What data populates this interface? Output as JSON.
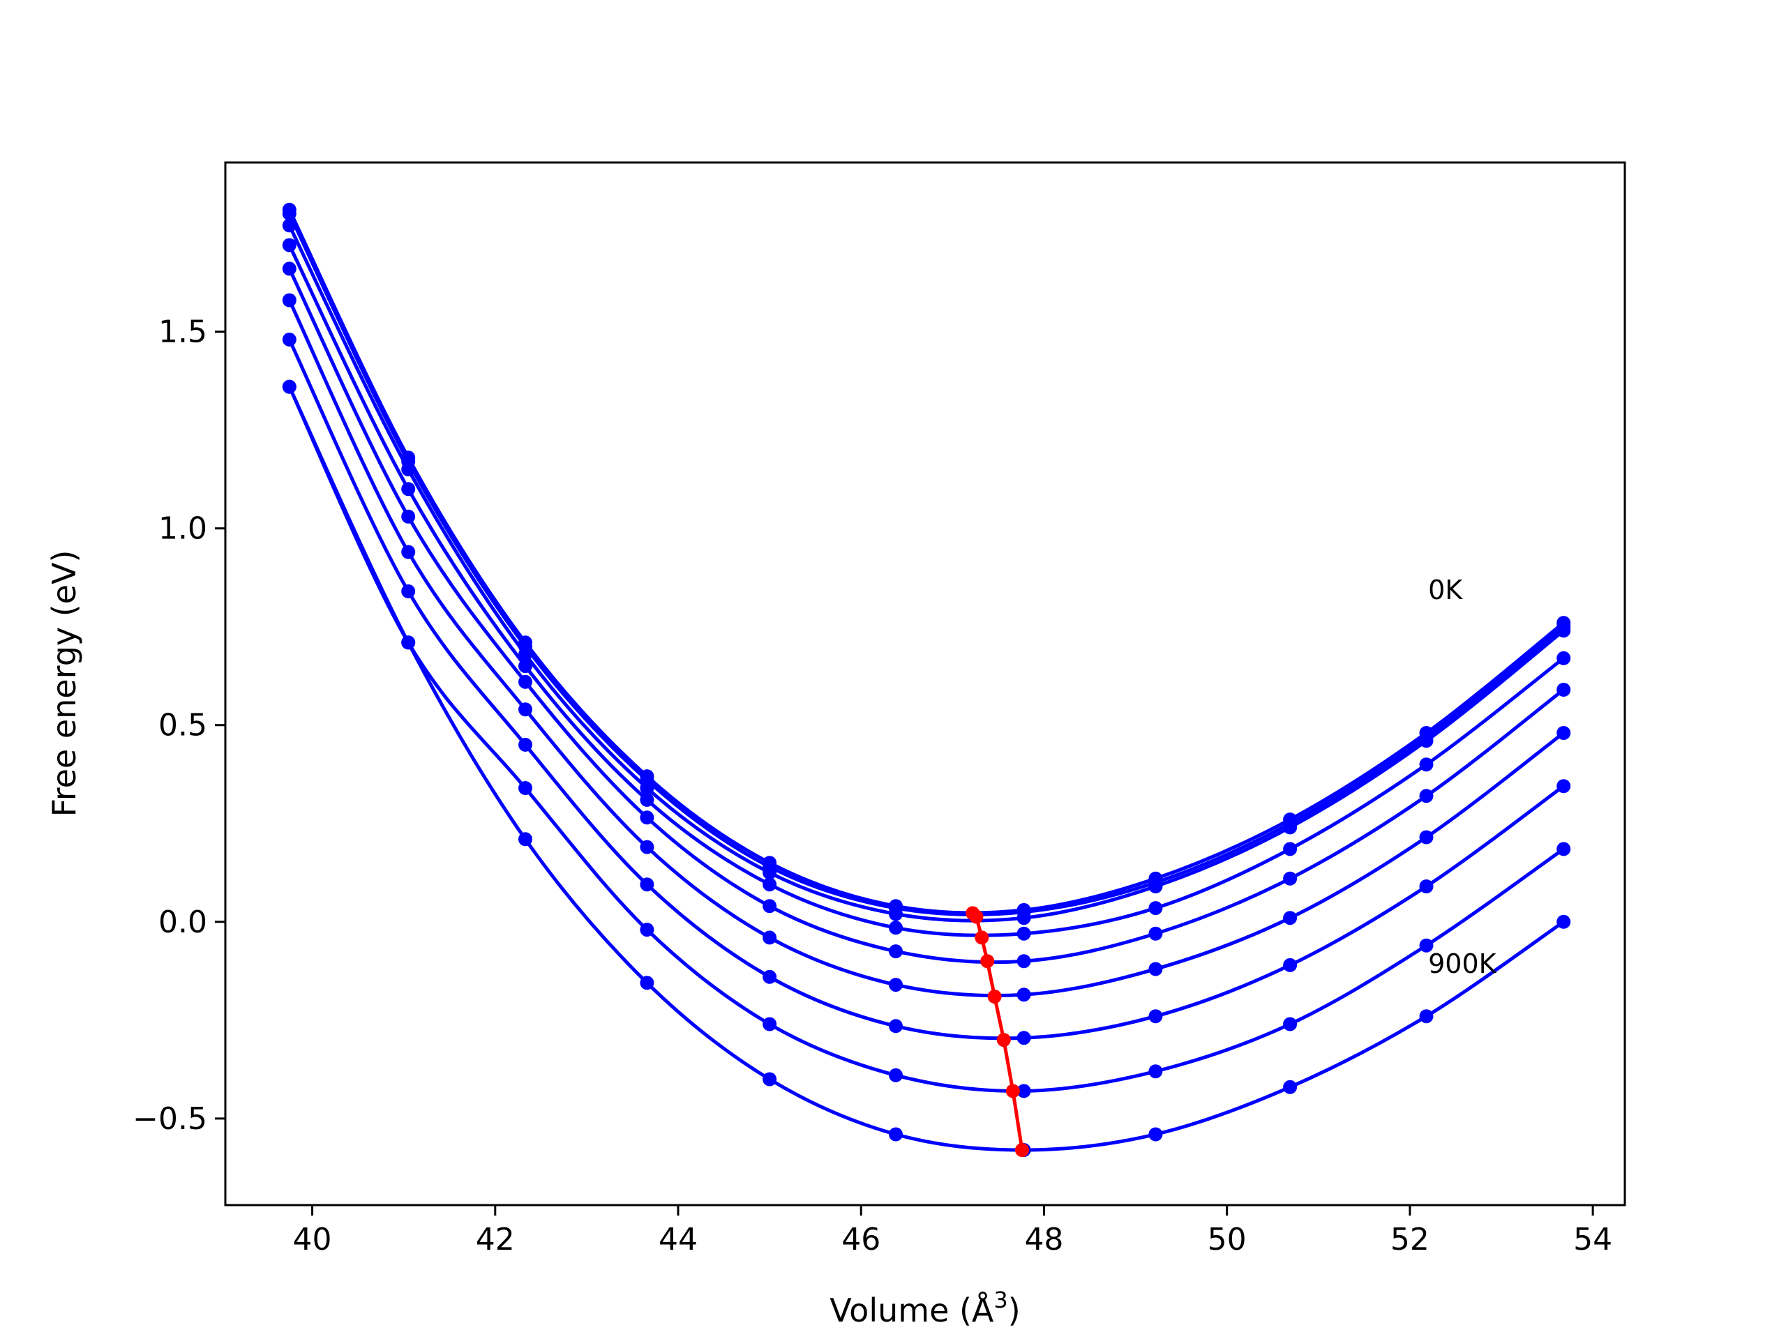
{
  "chart_data": {
    "type": "line",
    "title": "",
    "xlabel": "Volume (Å",
    "xlabel_superscript": "3",
    "xlabel_suffix": ")",
    "ylabel": "Free energy (eV)",
    "xlim": [
      39.05,
      54.35
    ],
    "ylim": [
      -0.72,
      1.93
    ],
    "xticks": [
      40,
      42,
      44,
      46,
      48,
      50,
      52,
      54
    ],
    "yticks": [
      -0.5,
      0.0,
      0.5,
      1.0,
      1.5
    ],
    "ytick_labels": [
      "−0.5",
      "0.0",
      "0.5",
      "1.0",
      "1.5"
    ],
    "grid": false,
    "legend": "none",
    "annotations": [
      {
        "text": "0K",
        "x": 52.2,
        "y": 0.82
      },
      {
        "text": "900K",
        "x": 52.2,
        "y": -0.13
      }
    ],
    "colors": {
      "isotherm": "#0000ff",
      "minimum_path": "#ff0000"
    },
    "x": [
      39.75,
      41.05,
      42.33,
      43.66,
      45.0,
      46.38,
      47.78,
      49.22,
      50.69,
      52.18,
      53.68
    ],
    "series": [
      {
        "values": [
          1.81,
          1.18,
          0.71,
          0.37,
          0.15,
          0.04,
          0.03,
          0.11,
          0.26,
          0.48,
          0.76
        ]
      },
      {
        "values": [
          1.8,
          1.17,
          0.7,
          0.36,
          0.14,
          0.035,
          0.025,
          0.1,
          0.25,
          0.47,
          0.75
        ]
      },
      {
        "values": [
          1.77,
          1.15,
          0.68,
          0.34,
          0.125,
          0.02,
          0.01,
          0.09,
          0.24,
          0.46,
          0.74
        ]
      },
      {
        "values": [
          1.72,
          1.1,
          0.65,
          0.31,
          0.095,
          -0.015,
          -0.03,
          0.035,
          0.185,
          0.4,
          0.67
        ]
      },
      {
        "values": [
          1.66,
          1.03,
          0.61,
          0.265,
          0.04,
          -0.075,
          -0.1,
          -0.03,
          0.11,
          0.32,
          0.59
        ]
      },
      {
        "values": [
          1.58,
          0.94,
          0.54,
          0.19,
          -0.04,
          -0.16,
          -0.185,
          -0.12,
          0.01,
          0.215,
          0.48
        ]
      },
      {
        "values": [
          1.48,
          0.84,
          0.45,
          0.095,
          -0.14,
          -0.265,
          -0.295,
          -0.24,
          -0.11,
          0.09,
          0.345
        ]
      },
      {
        "values": [
          1.36,
          0.71,
          0.34,
          -0.02,
          -0.26,
          -0.39,
          -0.43,
          -0.38,
          -0.26,
          -0.06,
          0.185
        ]
      },
      {
        "values": [
          1.36,
          0.71,
          0.21,
          -0.155,
          -0.4,
          -0.54,
          -0.58,
          -0.54,
          -0.42,
          -0.24,
          0.0
        ]
      }
    ],
    "minimum_path": {
      "x": [
        47.22,
        47.26,
        47.32,
        47.38,
        47.46,
        47.56,
        47.66,
        47.76
      ],
      "y": [
        0.022,
        0.013,
        -0.04,
        -0.1,
        -0.19,
        -0.3,
        -0.43,
        -0.58
      ]
    }
  }
}
